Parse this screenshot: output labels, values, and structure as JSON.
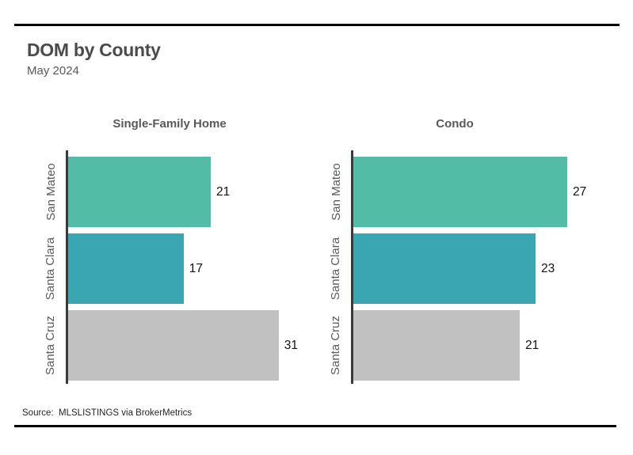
{
  "header": {
    "title": "DOM by County",
    "subtitle": "May 2024"
  },
  "footer": {
    "source": "Source:  MLSLISTINGS via BrokerMetrics"
  },
  "colors": {
    "bar_teal_green": "#52bca6",
    "bar_teal": "#3aa6b2",
    "bar_gray": "#c1c1c1",
    "axis": "#3a3a3a",
    "rule": "#000000",
    "value_label": "#111111",
    "category_label": "#595a5c",
    "title_text": "#4a4b4d"
  },
  "chart_data": [
    {
      "type": "bar",
      "orientation": "horizontal",
      "title": "Single-Family Home",
      "categories": [
        "San Mateo",
        "Santa Clara",
        "Santa Cruz"
      ],
      "values": [
        21,
        17,
        31
      ],
      "bar_colors": [
        "#52bca6",
        "#3aa6b2",
        "#c1c1c1"
      ],
      "xlim": [
        0,
        35
      ],
      "grid": false,
      "legend": false
    },
    {
      "type": "bar",
      "orientation": "horizontal",
      "title": "Condo",
      "categories": [
        "San Mateo",
        "Santa Clara",
        "Santa Cruz"
      ],
      "values": [
        27,
        23,
        21
      ],
      "bar_colors": [
        "#52bca6",
        "#3aa6b2",
        "#c1c1c1"
      ],
      "xlim": [
        0,
        30
      ],
      "grid": false,
      "legend": false
    }
  ]
}
